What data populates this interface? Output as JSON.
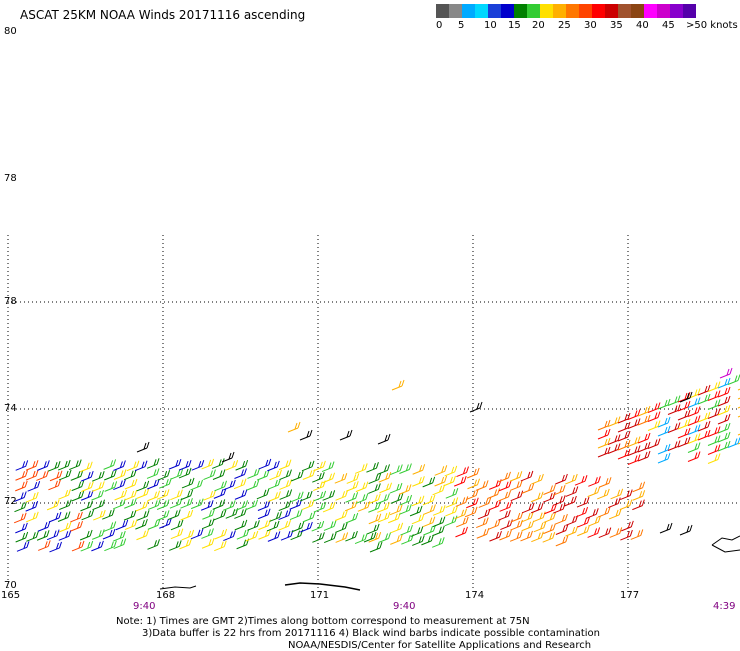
{
  "title": "ASCAT 25KM NOAA Winds 20171116 ascending",
  "legend": {
    "colors": [
      "#555555",
      "#888888",
      "#00aaff",
      "#00d8ff",
      "#1a3fd8",
      "#0000cc",
      "#008000",
      "#33cc33",
      "#ffe000",
      "#ffb000",
      "#ff7700",
      "#ff4400",
      "#ff0000",
      "#cc0000",
      "#a0522d",
      "#8b4513",
      "#ff00ff",
      "#cc00cc",
      "#8800cc",
      "#5500aa"
    ],
    "labels": [
      "0",
      "5",
      "10",
      "15",
      "20",
      "25",
      "30",
      "35",
      "40",
      "45",
      ">50 knots"
    ]
  },
  "y_labels": [
    "80",
    "78",
    "78",
    "74",
    "72",
    "70"
  ],
  "x_labels": [
    "165",
    "168",
    "171",
    "174",
    "177"
  ],
  "times": [
    "9:40",
    "9:40",
    "4:39"
  ],
  "notes": [
    "Note:  1) Times are GMT   2)Times along bottom correspond to measurement at 75N",
    "3)Data buffer is 22 hrs from 20171116   4) Black wind barbs indicate possible contamination",
    "NOAA/NESDIS/Center for Satellite Applications and Research"
  ],
  "map_data": {
    "type": "wind_barbs",
    "swath_color_bands_by_longitude": [
      {
        "from": 165,
        "to": 166.2,
        "colors": [
          "#0000cc",
          "#008000",
          "#ffe000",
          "#ff4400"
        ]
      },
      {
        "from": 166.2,
        "to": 170.8,
        "colors": [
          "#008000",
          "#33cc33",
          "#ffe000",
          "#0000cc"
        ]
      },
      {
        "from": 170.8,
        "to": 173.5,
        "colors": [
          "#ffe000",
          "#ffb000",
          "#008000",
          "#33cc33"
        ]
      },
      {
        "from": 173.5,
        "to": 177.2,
        "colors": [
          "#ff0000",
          "#ff7700",
          "#ffb000",
          "#cc0000"
        ]
      },
      {
        "from": 177.2,
        "to": 179,
        "colors": [
          "#ff0000",
          "#ffe000",
          "#33cc33",
          "#00aaff",
          "#cc0000"
        ]
      }
    ]
  }
}
